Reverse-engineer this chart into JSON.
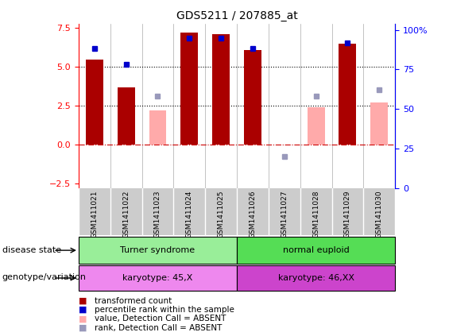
{
  "title": "GDS5211 / 207885_at",
  "samples": [
    "GSM1411021",
    "GSM1411022",
    "GSM1411023",
    "GSM1411024",
    "GSM1411025",
    "GSM1411026",
    "GSM1411027",
    "GSM1411028",
    "GSM1411029",
    "GSM1411030"
  ],
  "transformed_count": [
    5.5,
    3.7,
    null,
    7.2,
    7.1,
    6.1,
    null,
    null,
    6.5,
    null
  ],
  "absent_value": [
    null,
    null,
    2.2,
    null,
    null,
    null,
    null,
    2.4,
    null,
    2.7
  ],
  "percentile_rank": [
    88,
    78,
    null,
    95,
    95,
    88,
    null,
    null,
    92,
    null
  ],
  "absent_rank": [
    null,
    null,
    58,
    null,
    null,
    null,
    20,
    58,
    null,
    62
  ],
  "ylim_left": [
    -2.8,
    7.8
  ],
  "ylim_right": [
    0,
    104
  ],
  "yticks_left": [
    -2.5,
    0.0,
    2.5,
    5.0,
    7.5
  ],
  "yticks_right": [
    0,
    25,
    50,
    75,
    100
  ],
  "hlines": [
    5.0,
    2.5
  ],
  "bar_color": "#aa0000",
  "absent_bar_color": "#ffaaaa",
  "rank_color": "#0000cc",
  "absent_rank_color": "#9999bb",
  "disease_state_groups": [
    {
      "label": "Turner syndrome",
      "start": 0,
      "end": 5,
      "color": "#99ee99"
    },
    {
      "label": "normal euploid",
      "start": 5,
      "end": 10,
      "color": "#55dd55"
    }
  ],
  "genotype_groups": [
    {
      "label": "karyotype: 45,X",
      "start": 0,
      "end": 5,
      "color": "#ee88ee"
    },
    {
      "label": "karyotype: 46,XX",
      "start": 5,
      "end": 10,
      "color": "#cc44cc"
    }
  ],
  "legend_items": [
    {
      "label": "transformed count",
      "color": "#aa0000"
    },
    {
      "label": "percentile rank within the sample",
      "color": "#0000cc"
    },
    {
      "label": "value, Detection Call = ABSENT",
      "color": "#ffaaaa"
    },
    {
      "label": "rank, Detection Call = ABSENT",
      "color": "#9999bb"
    }
  ],
  "label_disease_state": "disease state",
  "label_genotype": "genotype/variation",
  "bar_width": 0.55
}
